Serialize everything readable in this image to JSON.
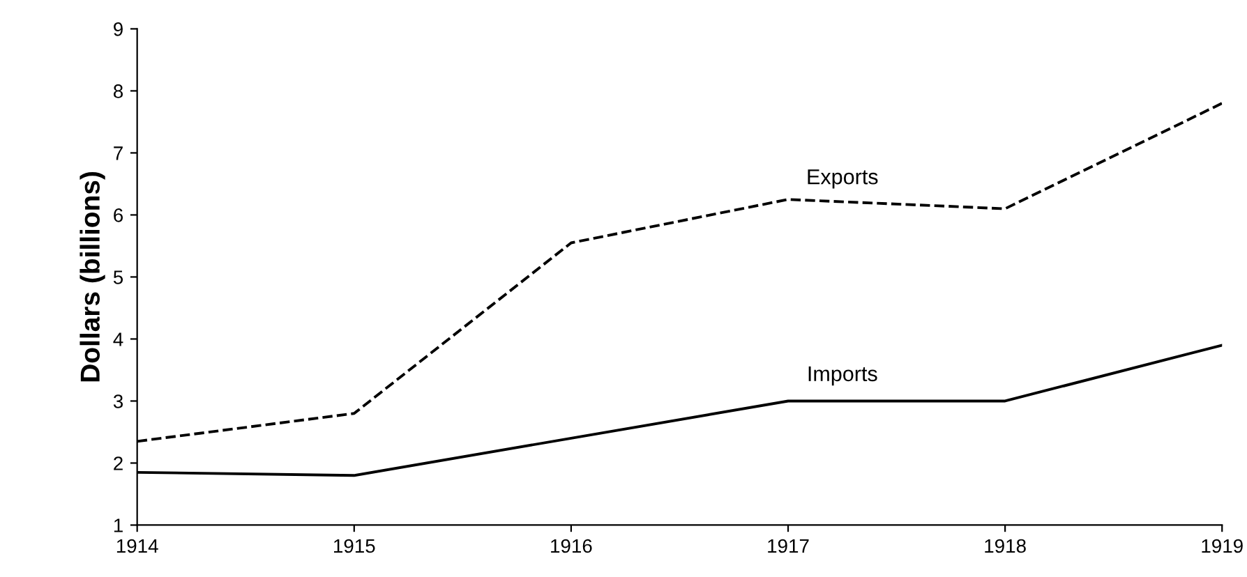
{
  "chart_data": {
    "type": "line",
    "ylabel": "Dollars (billions)",
    "x": [
      1914,
      1915,
      1916,
      1917,
      1918,
      1919
    ],
    "series": [
      {
        "name": "Exports",
        "color": "#000000",
        "line_style": "dashed",
        "values": [
          2.35,
          2.8,
          5.55,
          6.25,
          6.1,
          7.8
        ]
      },
      {
        "name": "Imports",
        "color": "#000000",
        "line_style": "solid",
        "values": [
          1.85,
          1.8,
          2.4,
          3.0,
          3.0,
          3.9
        ]
      }
    ],
    "xlim": [
      1914,
      1919
    ],
    "ylim": [
      1,
      9
    ],
    "xticks": [
      1914,
      1915,
      1916,
      1917,
      1918,
      1919
    ],
    "yticks": [
      1,
      2,
      3,
      4,
      5,
      6,
      7,
      8,
      9
    ],
    "grid": false,
    "legend": false,
    "marker": "none"
  }
}
